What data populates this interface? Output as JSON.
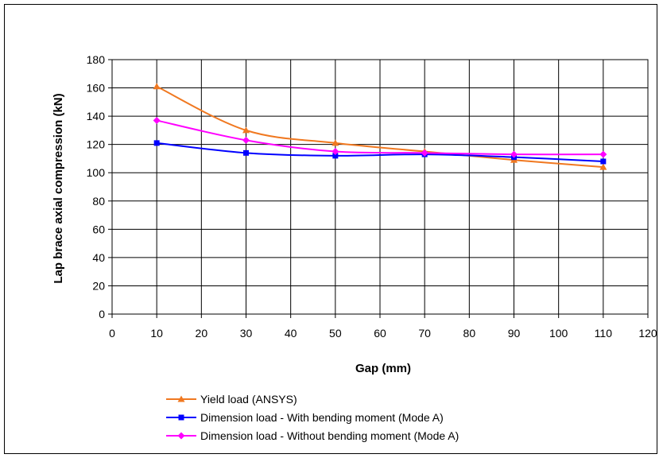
{
  "chart_data": {
    "type": "line",
    "title": "",
    "xlabel": "Gap (mm)",
    "ylabel": "Lap brace axial compression (kN)",
    "xlim": [
      0,
      120
    ],
    "ylim": [
      0,
      180
    ],
    "xticks": [
      0,
      10,
      20,
      30,
      40,
      50,
      60,
      70,
      80,
      90,
      100,
      110,
      120
    ],
    "yticks": [
      0,
      20,
      40,
      60,
      80,
      100,
      120,
      140,
      160,
      180
    ],
    "grid": true,
    "legend_position": "bottom",
    "x": [
      10,
      30,
      50,
      70,
      90,
      110
    ],
    "series": [
      {
        "name": "Yield load (ANSYS)",
        "color": "#f07820",
        "marker": "triangle",
        "values": [
          161,
          130,
          121,
          115,
          109,
          104
        ]
      },
      {
        "name": "Dimension load - With bending moment (Mode A)",
        "color": "#0000ff",
        "marker": "square",
        "values": [
          121,
          114,
          112,
          113,
          111,
          108
        ]
      },
      {
        "name": "Dimension load - Without bending moment (Mode A)",
        "color": "#ff00ff",
        "marker": "diamond",
        "values": [
          137,
          123,
          115,
          114,
          113,
          113
        ]
      }
    ]
  }
}
